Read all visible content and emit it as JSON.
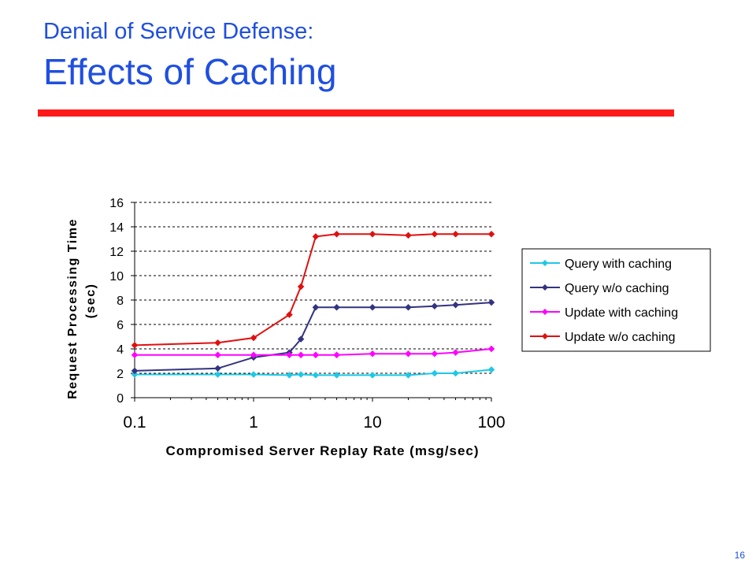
{
  "slide": {
    "subtitle": "Denial of Service Defense:",
    "title": "Effects of Caching",
    "page_number": "16",
    "accent_color": "#ff1a1a",
    "title_color": "#1f4fe0"
  },
  "chart_data": {
    "type": "line",
    "xscale": "log",
    "xlabel": "Compromised Server Replay Rate (msg/sec)",
    "ylabel": "Request Processing Time (sec)",
    "ylabel_lines": [
      "Request Processing Time",
      "(sec)"
    ],
    "xlim": [
      0.1,
      100
    ],
    "ylim": [
      0,
      16
    ],
    "xticks": [
      "0.1",
      "1",
      "10",
      "100"
    ],
    "yticks": [
      "0",
      "2",
      "4",
      "6",
      "8",
      "10",
      "12",
      "14",
      "16"
    ],
    "grid": "horizontal-dashed",
    "legend_position": "right",
    "series": [
      {
        "name": "Query with caching",
        "color": "#1ec8e6",
        "points": [
          [
            0.1,
            1.9
          ],
          [
            0.5,
            1.9
          ],
          [
            1,
            1.9
          ],
          [
            2,
            1.85
          ],
          [
            2.5,
            1.9
          ],
          [
            3.33,
            1.85
          ],
          [
            5,
            1.85
          ],
          [
            10,
            1.85
          ],
          [
            20,
            1.85
          ],
          [
            33.3,
            2.0
          ],
          [
            50,
            2.0
          ],
          [
            100,
            2.3
          ]
        ]
      },
      {
        "name": "Query w/o caching",
        "color": "#333380",
        "points": [
          [
            0.1,
            2.2
          ],
          [
            0.5,
            2.4
          ],
          [
            1,
            3.3
          ],
          [
            2,
            3.7
          ],
          [
            2.5,
            4.8
          ],
          [
            3.33,
            7.4
          ],
          [
            5,
            7.4
          ],
          [
            10,
            7.4
          ],
          [
            20,
            7.4
          ],
          [
            33.3,
            7.5
          ],
          [
            50,
            7.6
          ],
          [
            100,
            7.8
          ]
        ]
      },
      {
        "name": "Update with caching",
        "color": "#ff00ff",
        "points": [
          [
            0.1,
            3.5
          ],
          [
            0.5,
            3.5
          ],
          [
            1,
            3.5
          ],
          [
            2,
            3.5
          ],
          [
            2.5,
            3.5
          ],
          [
            3.33,
            3.5
          ],
          [
            5,
            3.5
          ],
          [
            10,
            3.6
          ],
          [
            20,
            3.6
          ],
          [
            33.3,
            3.6
          ],
          [
            50,
            3.7
          ],
          [
            100,
            4.0
          ]
        ]
      },
      {
        "name": "Update w/o caching",
        "color": "#e01010",
        "points": [
          [
            0.1,
            4.3
          ],
          [
            0.5,
            4.5
          ],
          [
            1,
            4.9
          ],
          [
            2,
            6.8
          ],
          [
            2.5,
            9.1
          ],
          [
            3.33,
            13.2
          ],
          [
            5,
            13.4
          ],
          [
            10,
            13.4
          ],
          [
            20,
            13.3
          ],
          [
            33.3,
            13.4
          ],
          [
            50,
            13.4
          ],
          [
            100,
            13.4
          ]
        ]
      }
    ]
  }
}
